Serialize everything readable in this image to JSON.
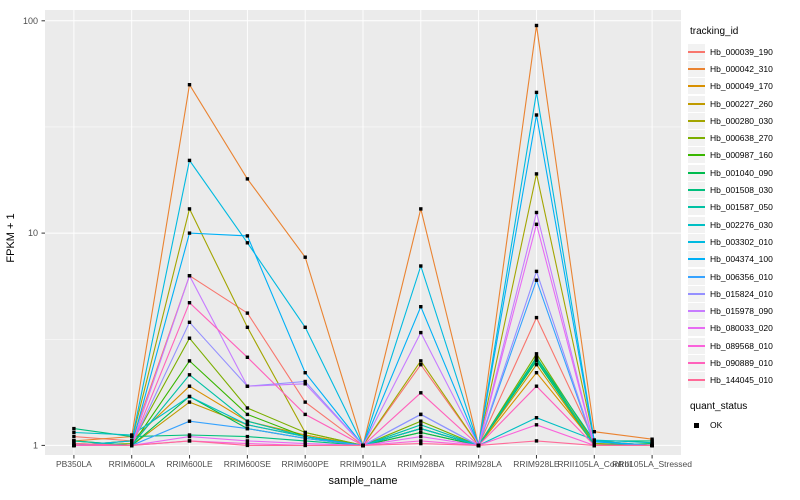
{
  "chart_data": {
    "type": "line",
    "xlabel": "sample_name",
    "ylabel": "FPKM + 1",
    "legend_title": "tracking_id",
    "legend2_title": "quant_status",
    "quant_status_items": [
      {
        "label": "OK",
        "marker": "black-square"
      }
    ],
    "y_scale": "log10",
    "y_ticks": [
      1,
      10,
      100
    ],
    "ylim": [
      0.9,
      110
    ],
    "grid": true,
    "legend_position": "right",
    "panel_bg": "#EBEBEB",
    "grid_color": "#FFFFFF",
    "axis_text_color": "#4D4D4D",
    "marker_color": "#000000",
    "categories": [
      "PB350LA",
      "RRIM600LA",
      "RRIM600LE",
      "RRIM600SE",
      "RRIM600PE",
      "RRIM901LA",
      "RRIM928BA",
      "RRIM928LA",
      "RRIM928LE",
      "RRII105LA_Control",
      "RRII105LA_Stressed"
    ],
    "series": [
      {
        "name": "Hb_000039_190",
        "color": "#F8766D",
        "values": [
          1.1,
          1.05,
          6.3,
          4.2,
          1.6,
          1.0,
          2.4,
          1.0,
          4.0,
          1.05,
          1.0
        ]
      },
      {
        "name": "Hb_000042_310",
        "color": "#EA8331",
        "values": [
          1.05,
          1.1,
          50,
          18,
          7.7,
          1.0,
          13,
          1.0,
          95,
          1.16,
          1.07
        ]
      },
      {
        "name": "Hb_000049_170",
        "color": "#D89000",
        "values": [
          1.0,
          1.05,
          1.9,
          1.3,
          1.12,
          1.0,
          1.15,
          1.0,
          2.2,
          1.02,
          1.0
        ]
      },
      {
        "name": "Hb_000227_260",
        "color": "#C09B00",
        "values": [
          1.02,
          1.0,
          1.6,
          1.25,
          1.1,
          1.0,
          1.2,
          1.0,
          2.4,
          1.0,
          1.0
        ]
      },
      {
        "name": "Hb_000280_030",
        "color": "#A3A500",
        "values": [
          1.0,
          1.05,
          13,
          3.6,
          1.15,
          1.0,
          2.5,
          1.0,
          19,
          1.05,
          1.0
        ]
      },
      {
        "name": "Hb_000638_270",
        "color": "#7CAE00",
        "values": [
          1.0,
          1.02,
          3.2,
          1.5,
          1.15,
          1.0,
          1.3,
          1.0,
          2.7,
          1.02,
          1.0
        ]
      },
      {
        "name": "Hb_000987_160",
        "color": "#39B600",
        "values": [
          1.05,
          1.0,
          2.5,
          1.4,
          1.1,
          1.0,
          1.2,
          1.0,
          2.6,
          1.0,
          1.0
        ]
      },
      {
        "name": "Hb_001040_090",
        "color": "#00BB4E",
        "values": [
          1.0,
          1.0,
          1.7,
          1.2,
          1.08,
          1.0,
          1.15,
          1.0,
          2.5,
          1.0,
          1.02
        ]
      },
      {
        "name": "Hb_001508_030",
        "color": "#00BF7D",
        "values": [
          1.2,
          1.1,
          1.12,
          1.1,
          1.05,
          1.0,
          1.2,
          1.0,
          2.6,
          1.05,
          1.05
        ]
      },
      {
        "name": "Hb_001587_050",
        "color": "#00C1A3",
        "values": [
          1.05,
          1.0,
          2.15,
          1.3,
          1.1,
          1.0,
          1.25,
          1.0,
          2.55,
          1.0,
          1.0
        ]
      },
      {
        "name": "Hb_002276_030",
        "color": "#00BFC4",
        "values": [
          1.15,
          1.12,
          1.7,
          1.25,
          1.1,
          1.0,
          1.2,
          1.0,
          1.35,
          1.06,
          1.03
        ]
      },
      {
        "name": "Hb_003302_010",
        "color": "#00BAE0",
        "values": [
          1.0,
          1.05,
          22,
          9.0,
          3.6,
          1.0,
          7.0,
          1.0,
          46,
          1.05,
          1.0
        ]
      },
      {
        "name": "Hb_004374_100",
        "color": "#00B0F6",
        "values": [
          1.0,
          1.0,
          10,
          9.7,
          2.2,
          1.0,
          4.5,
          1.0,
          36,
          1.04,
          1.0
        ]
      },
      {
        "name": "Hb_006356_010",
        "color": "#35A2FF",
        "values": [
          1.0,
          1.0,
          1.3,
          1.2,
          1.08,
          1.0,
          1.4,
          1.0,
          6.0,
          1.0,
          1.0
        ]
      },
      {
        "name": "Hb_015824_010",
        "color": "#9590FF",
        "values": [
          1.0,
          1.0,
          3.8,
          1.9,
          2.0,
          1.0,
          1.4,
          1.0,
          6.6,
          1.0,
          1.0
        ]
      },
      {
        "name": "Hb_015978_090",
        "color": "#C77CFF",
        "values": [
          1.0,
          1.0,
          6.3,
          1.9,
          1.95,
          1.0,
          3.4,
          1.0,
          12.5,
          1.0,
          1.0
        ]
      },
      {
        "name": "Hb_080033_020",
        "color": "#E76BF3",
        "values": [
          1.0,
          1.0,
          1.1,
          1.05,
          1.02,
          1.0,
          1.1,
          1.0,
          11,
          1.0,
          1.0
        ]
      },
      {
        "name": "Hb_089568_010",
        "color": "#FA62DB",
        "values": [
          1.0,
          1.0,
          1.05,
          1.02,
          1.0,
          1.0,
          1.05,
          1.0,
          1.25,
          1.0,
          1.0
        ]
      },
      {
        "name": "Hb_090889_010",
        "color": "#FF62BC",
        "values": [
          1.0,
          1.0,
          4.7,
          2.6,
          1.4,
          1.0,
          1.77,
          1.0,
          1.9,
          1.0,
          1.0
        ]
      },
      {
        "name": "Hb_144045_010",
        "color": "#FF6A98",
        "values": [
          1.02,
          1.0,
          1.05,
          1.0,
          1.0,
          1.0,
          1.02,
          1.0,
          1.05,
          1.0,
          1.0
        ]
      }
    ]
  }
}
